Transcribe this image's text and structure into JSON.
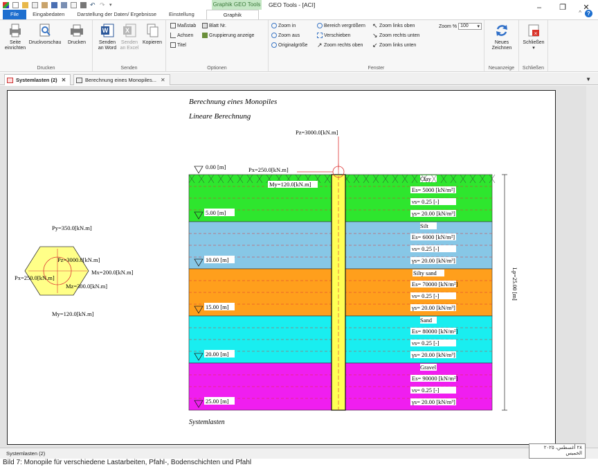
{
  "app": {
    "title": "GEO Tools - [ACI]",
    "context_tab": "Graphik GEO Tools"
  },
  "tabs": [
    {
      "label": "File"
    },
    {
      "label": "Eingabedaten"
    },
    {
      "label": "Darstellung der Daten/ Ergebnisse"
    },
    {
      "label": "Einstellung"
    },
    {
      "label": "Graphik"
    }
  ],
  "ribbon": {
    "drucken": {
      "label": "Drucken",
      "seite": "Seite einrichten",
      "seite1": "Seite",
      "seite2": "einrichten",
      "vorschau": "Druckvorschau",
      "drucken": "Drucken"
    },
    "senden": {
      "label": "Senden",
      "word1": "Senden",
      "word2": "an Word",
      "excel1": "Senden",
      "excel2": "an Excel",
      "kopieren": "Kopieren"
    },
    "optionen": {
      "label": "Optionen",
      "massstab": "Maßstab",
      "blatt": "Blatt Nr.",
      "achsen": "Achsen",
      "gruppierung": "Gruppierung anzeige",
      "titel": "Titel"
    },
    "fenster": {
      "label": "Fenster",
      "zoom_in": "Zoom in",
      "zoom_aus": "Zoom aus",
      "original": "Originalgröße",
      "bereich": "Bereich vergrößern",
      "verschieben": "Verschieben",
      "zoom_ro": "Zoom rechts oben",
      "zoom_lo": "Zoom links oben",
      "zoom_ru": "Zoom rechts unten",
      "zoom_lu": "Zoom links unten",
      "zoom_pct_label": "Zoom %",
      "zoom_pct": "100"
    },
    "neuanzeige": {
      "label": "Neuanzeige",
      "neues1": "Neues",
      "neues2": "Zeichnen"
    },
    "schliessen": {
      "label": "Schließen",
      "btn": "Schließen"
    }
  },
  "doc_tabs": [
    {
      "label": "Systemlasten (2)"
    },
    {
      "label": "Berechnung eines Monopiles..."
    }
  ],
  "drawing": {
    "title1": "Berechnung eines Monopiles",
    "title2": "Lineare Berechnung",
    "footer": "Systemlasten",
    "pz_top": "Pz=3000.0[kN.m]",
    "px_top": "Px=250.0[kN.m]",
    "my_top": "My=120.0[kN.m]",
    "length": "Lp=25.00 [m]",
    "plan": {
      "py": "Py=350.0[kN.m]",
      "pz": "Pz=3000.0[kN.m]",
      "mx": "Mx=200.0[kN.m]",
      "px": "Px=250.0[kN.m]",
      "mz": "Mz=300.0[kN.m]",
      "my": "My=120.0[kN.m]"
    },
    "top_depth": "0.00 [m]",
    "layers": [
      {
        "name": "Clay",
        "es": "Es= 5000 [kN/m²]",
        "nu": "νs= 0.25 [-]",
        "gamma": "γs= 20.00 [kN/m³]",
        "depth": "5.00 [m]",
        "color": "#2ee62e"
      },
      {
        "name": "Silt",
        "es": "Es= 6000 [kN/m²]",
        "nu": "νs= 0.25 [-]",
        "gamma": "γs= 20.00 [kN/m³]",
        "depth": "10.00 [m]",
        "color": "#87c7e6"
      },
      {
        "name": "Silty sand",
        "es": "Es= 70000 [kN/m²]",
        "nu": "νs= 0.25 [-]",
        "gamma": "γs= 20.00 [kN/m³]",
        "depth": "15.00 [m]",
        "color": "#ff9f1c"
      },
      {
        "name": "Sand",
        "es": "Es= 80000 [kN/m²]",
        "nu": "νs= 0.25 [-]",
        "gamma": "γs= 20.00 [kN/m³]",
        "depth": "20.00 [m]",
        "color": "#19eef0"
      },
      {
        "name": "Gravel",
        "es": "Es= 90000 [kN/m²]",
        "nu": "νs= 0.25 [-]",
        "gamma": "γs= 20.00 [kN/m³]",
        "depth": "25.00 [m]",
        "color": "#f01ef0"
      }
    ]
  },
  "statusbar": "Systemlasten (2)",
  "tooltip": "٢٨ أغسطس، ٢٠٢٥ الخميس",
  "caption": "Bild 7: Monopile für verschiedene Lastarbeiten, Pfahl-, Bodenschichten und Pfahl"
}
